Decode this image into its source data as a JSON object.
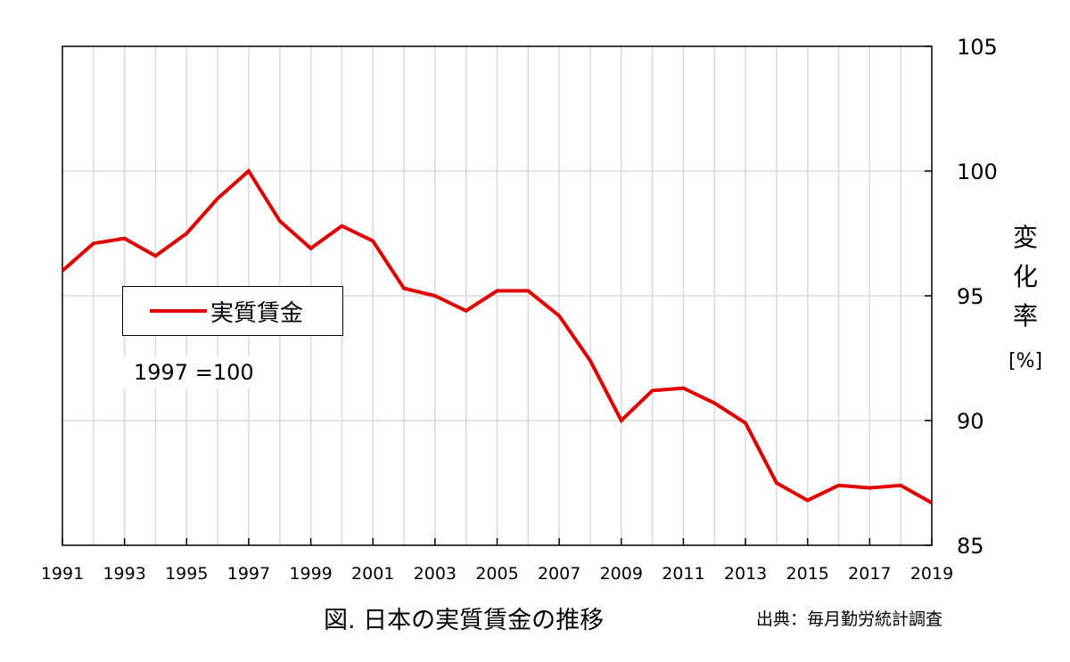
{
  "chart_data": {
    "type": "line",
    "x": [
      1991,
      1992,
      1993,
      1994,
      1995,
      1996,
      1997,
      1998,
      1999,
      2000,
      2001,
      2002,
      2003,
      2004,
      2005,
      2006,
      2007,
      2008,
      2009,
      2010,
      2011,
      2012,
      2013,
      2014,
      2015,
      2016,
      2017,
      2018,
      2019
    ],
    "series": [
      {
        "name": "実質賃金",
        "color": "#e00000",
        "values": [
          96.0,
          97.1,
          97.3,
          96.6,
          97.5,
          98.9,
          100.0,
          98.0,
          96.9,
          97.8,
          97.2,
          95.3,
          95.0,
          94.4,
          95.2,
          95.2,
          94.2,
          92.4,
          90.0,
          91.2,
          91.3,
          90.7,
          89.9,
          87.5,
          86.8,
          87.4,
          87.3,
          87.4,
          86.7
        ]
      }
    ],
    "xlim": [
      1991,
      2019
    ],
    "ylim": [
      85,
      105
    ],
    "yticks": [
      85,
      90,
      95,
      100,
      105
    ],
    "xtick_labels": [
      "1991",
      "1993",
      "1995",
      "1997",
      "1999",
      "2001",
      "2003",
      "2005",
      "2007",
      "2009",
      "2011",
      "2013",
      "2015",
      "2017",
      "2019"
    ],
    "ylabel": "変化率",
    "yunit": "[%]",
    "yaxis_position": "right",
    "grid": true,
    "legend_position": "left-middle",
    "annotation": "1997 =100",
    "caption": "図. 日本の実質賃金の推移",
    "source": "出典：毎月勤労統計調査"
  }
}
